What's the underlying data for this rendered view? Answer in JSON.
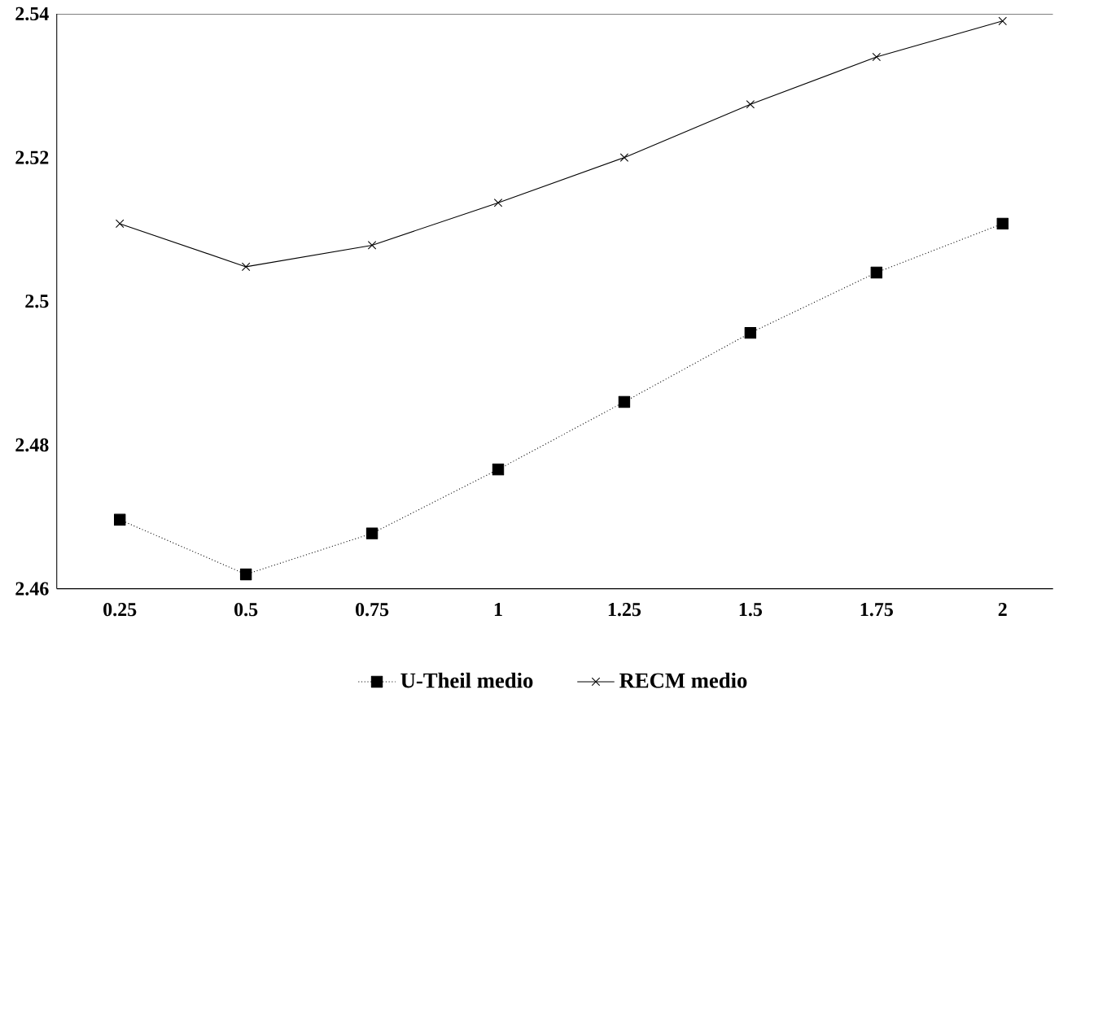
{
  "chart_data": {
    "type": "line",
    "categories": [
      "0.25",
      "0.5",
      "0.75",
      "1",
      "1.25",
      "1.5",
      "1.75",
      "2"
    ],
    "series": [
      {
        "name": "U-Theil medio",
        "color": "#000000",
        "marker": "square",
        "line_style": "dotted",
        "values": [
          2.4696,
          2.462,
          2.4677,
          2.4766,
          2.486,
          2.4956,
          2.504,
          2.5108
        ]
      },
      {
        "name": "RECM medio",
        "color": "#000000",
        "marker": "cross",
        "line_style": "solid",
        "values": [
          2.5108,
          2.5048,
          2.5078,
          2.5137,
          2.52,
          2.5274,
          2.534,
          2.539
        ]
      }
    ],
    "ylim": [
      2.46,
      2.54
    ],
    "yticks": [
      2.46,
      2.48,
      2.5,
      2.52,
      2.54
    ],
    "grid": false,
    "legend": "bottom"
  }
}
